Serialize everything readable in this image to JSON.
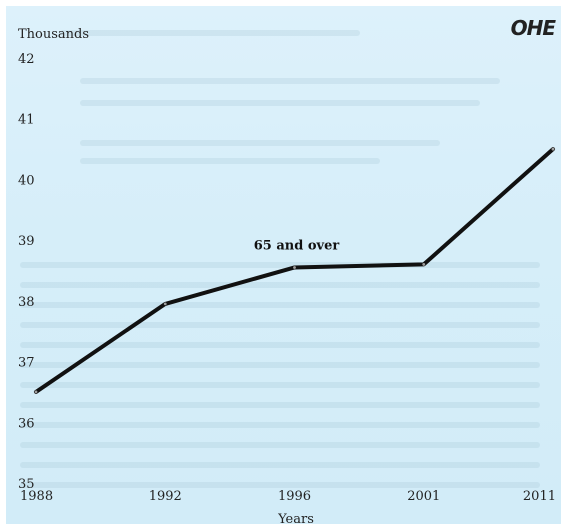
{
  "logo_text": "OHE",
  "colors": {
    "background": "#d8eff9",
    "line": "#111111",
    "text": "#222222"
  },
  "chart_data": {
    "type": "line",
    "ylabel": "Thousands",
    "xlabel": "Years",
    "x": [
      1988,
      1992,
      1996,
      2001,
      2011
    ],
    "series": [
      {
        "name": "65 and over",
        "values": [
          36.5,
          37.95,
          38.55,
          38.6,
          40.5
        ]
      }
    ],
    "xticks": [
      "1988",
      "1992",
      "1996",
      "2001",
      "2011"
    ],
    "yticks": [
      "35",
      "36",
      "37",
      "38",
      "39",
      "40",
      "41",
      "42"
    ],
    "xlim": [
      1988,
      2011
    ],
    "ylim": [
      35,
      42
    ],
    "grid": false,
    "legend": "none"
  }
}
